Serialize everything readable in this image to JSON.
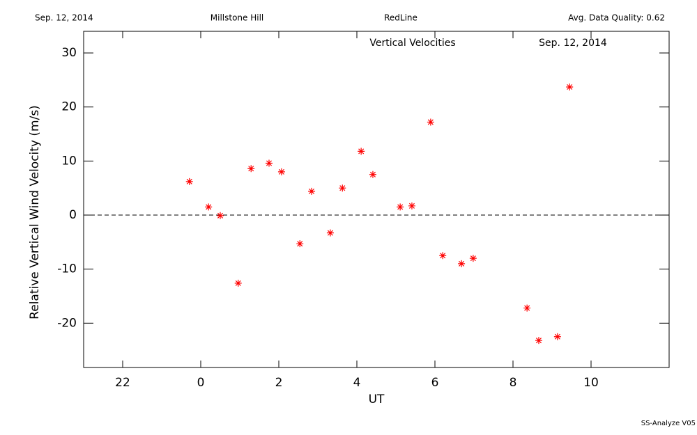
{
  "chart_data": {
    "type": "scatter",
    "header": [
      "Sep. 12, 2014",
      "Millstone Hill",
      "RedLine",
      "Avg. Data Quality: 0.62"
    ],
    "title": "Vertical Velocities",
    "subtitle": "Sep. 12, 2014",
    "x_label": "UT",
    "y_label": "Relative Vertical Wind Velocity (m/s)",
    "footer": "SS-Analyze V05",
    "xlim": [
      -3,
      12
    ],
    "ylim": [
      -28.2,
      34
    ],
    "xticks": [
      {
        "value": -2,
        "label": "22"
      },
      0,
      2,
      4,
      6,
      8,
      10
    ],
    "yticks": [
      -20,
      -10,
      0,
      10,
      20,
      30
    ],
    "reference_line": 0,
    "series": [
      {
        "color": "#ff0000",
        "x": [
          -0.29,
          0.2,
          0.5,
          0.96,
          1.29,
          1.75,
          2.07,
          2.54,
          2.84,
          3.32,
          3.63,
          4.11,
          4.41,
          5.11,
          5.41,
          5.89,
          6.2,
          6.68,
          6.98,
          8.36,
          8.66,
          9.14,
          9.45
        ],
        "values": [
          6.2,
          1.5,
          -0.1,
          -12.6,
          8.6,
          9.6,
          8.0,
          -5.3,
          4.4,
          -3.3,
          5.0,
          11.8,
          7.5,
          1.5,
          1.7,
          17.2,
          -7.5,
          -9.0,
          -8.0,
          -17.2,
          -23.2,
          -22.5,
          23.7
        ]
      }
    ]
  }
}
